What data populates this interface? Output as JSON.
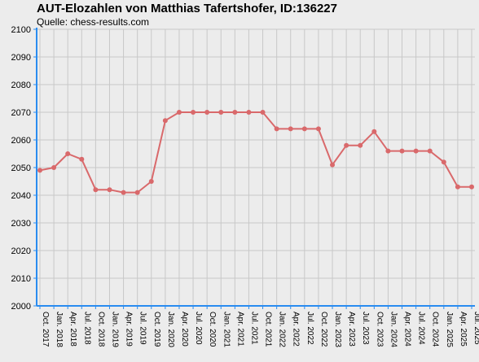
{
  "title": "AUT-Elozahlen von Matthias Tafertshofer, ID:136227",
  "subtitle": "Quelle: chess-results.com",
  "colors": {
    "background": "#ececec",
    "grid": "#c8c8c8",
    "axis": "#2a8cf0",
    "line": "#d9696b",
    "marker": "#d9696b"
  },
  "chart_data": {
    "type": "line",
    "title": "AUT-Elozahlen von Matthias Tafertshofer, ID:136227",
    "subtitle": "Quelle: chess-results.com",
    "xlabel": "",
    "ylabel": "",
    "ylim": [
      2000,
      2100
    ],
    "yticks": [
      2000,
      2010,
      2020,
      2030,
      2040,
      2050,
      2060,
      2070,
      2080,
      2090,
      2100
    ],
    "grid": true,
    "legend": "none",
    "categories": [
      "Oct. 2017",
      "Jan. 2018",
      "Apr. 2018",
      "Jul. 2018",
      "Oct. 2018",
      "Jan. 2019",
      "Apr. 2019",
      "Jul. 2019",
      "Oct. 2019",
      "Jan. 2020",
      "Apr. 2020",
      "Jul. 2020",
      "Oct. 2020",
      "Jan. 2021",
      "Apr. 2021",
      "Jul. 2021",
      "Oct. 2021",
      "Jan. 2022",
      "Apr. 2022",
      "Jul. 2022",
      "Oct. 2022",
      "Jan. 2023",
      "Apr. 2023",
      "Jul. 2023",
      "Oct. 2023",
      "Jan. 2024",
      "Apr. 2024",
      "Jul. 2024",
      "Oct. 2024",
      "Jan. 2025",
      "Apr. 2025",
      "Jul. 2025"
    ],
    "series": [
      {
        "values": [
          2049,
          2050,
          2055,
          2053,
          2042,
          2042,
          2041,
          2041,
          2045,
          2067,
          2070,
          2070,
          2070,
          2070,
          2070,
          2070,
          2070,
          2064,
          2064,
          2064,
          2064,
          2051,
          2058,
          2058,
          2063,
          2056,
          2056,
          2056,
          2056,
          2052,
          2043,
          2043
        ]
      }
    ]
  }
}
